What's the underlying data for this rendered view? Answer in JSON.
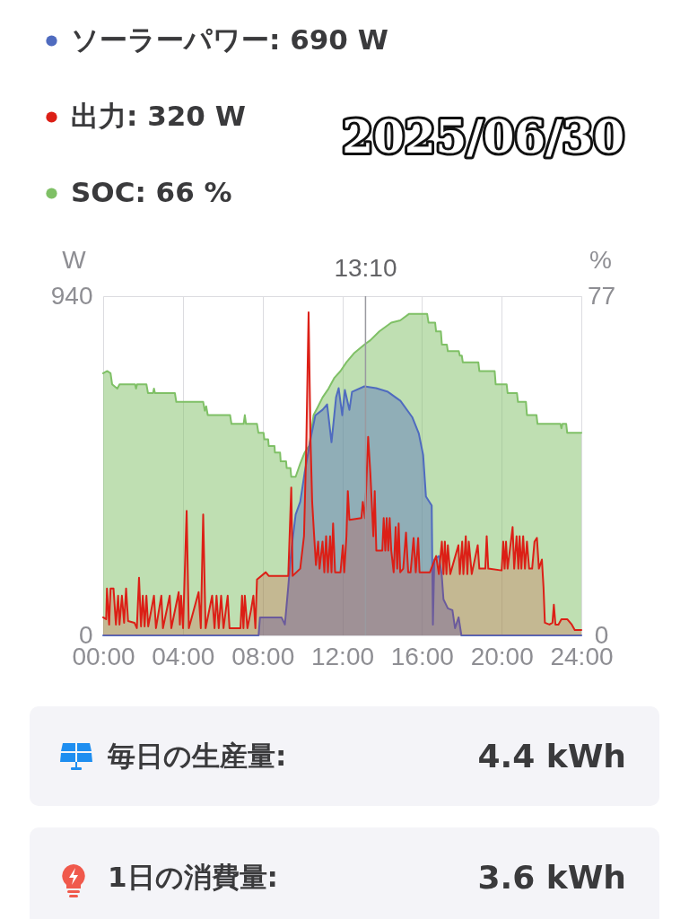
{
  "chart_data": {
    "type": "area",
    "title": "2025/06/30",
    "ylabel": "W",
    "y2label": "%",
    "xlim": [
      0,
      24
    ],
    "xticks": [
      {
        "value": 0,
        "label": "00:00"
      },
      {
        "value": 4,
        "label": "04:00"
      },
      {
        "value": 8,
        "label": "08:00"
      },
      {
        "value": 12,
        "label": "12:00"
      },
      {
        "value": 16,
        "label": "16:00"
      },
      {
        "value": 20,
        "label": "20:00"
      },
      {
        "value": 24,
        "label": "24:00"
      }
    ],
    "ylim": [
      0,
      940
    ],
    "yticks": [
      0,
      940
    ],
    "y2lim": [
      0,
      77
    ],
    "y2ticks": [
      0,
      77
    ],
    "grid": "x",
    "legend": "top left",
    "ref_lines": [
      {
        "axis": "x",
        "value": 13.167,
        "label": "13:10",
        "color": "#9a9aa0"
      }
    ],
    "series": [
      {
        "name": "ソーラーパワー: 690 W",
        "color": "#4f6bbf",
        "x": [
          0,
          7.8,
          7.87,
          8.5,
          8.95,
          9.12,
          9.29,
          9.44,
          9.66,
          9.89,
          10.11,
          10.43,
          10.65,
          11.01,
          11.24,
          11.46,
          11.69,
          11.82,
          12.0,
          12.13,
          12.36,
          12.49,
          13.11,
          13.7,
          14.29,
          14.92,
          15.51,
          15.84,
          16.06,
          16.2,
          16.49,
          16.55,
          16.62,
          16.85,
          16.99,
          17.08,
          17.3,
          17.53,
          17.66,
          17.84,
          17.98,
          24
        ],
        "values": [
          0,
          0,
          50,
          50,
          50,
          30,
          135,
          235,
          335,
          370,
          450,
          550,
          610,
          625,
          640,
          535,
          660,
          685,
          610,
          680,
          625,
          675,
          690,
          685,
          675,
          650,
          605,
          560,
          500,
          385,
          360,
          30,
          210,
          220,
          170,
          100,
          75,
          70,
          20,
          50,
          0,
          0
        ]
      },
      {
        "name": "出力: 320 W",
        "color": "#dc1f16",
        "x": [
          0,
          0.15,
          0.19,
          0.3,
          0.37,
          0.52,
          0.64,
          0.75,
          0.82,
          0.94,
          1.05,
          1.15,
          1.25,
          1.57,
          1.69,
          1.8,
          1.9,
          1.99,
          2.08,
          2.17,
          2.26,
          2.55,
          2.65,
          2.92,
          3.0,
          3.34,
          3.42,
          3.79,
          3.85,
          3.91,
          4.01,
          4.19,
          4.3,
          4.79,
          4.9,
          5.02,
          5.14,
          5.47,
          5.59,
          5.69,
          5.8,
          5.92,
          6.04,
          6.25,
          6.34,
          6.89,
          6.97,
          7.04,
          7.11,
          7.24,
          7.42,
          7.54,
          7.64,
          7.72,
          8.16,
          8.31,
          9.29,
          9.44,
          9.51,
          9.89,
          10.08,
          10.19,
          10.31,
          10.41,
          10.49,
          10.59,
          10.68,
          10.79,
          10.86,
          11.01,
          11.1,
          11.19,
          11.28,
          11.39,
          11.46,
          11.54,
          11.64,
          11.91,
          12.03,
          12.1,
          12.21,
          12.28,
          12.36,
          12.96,
          13.03,
          13.14,
          13.3,
          13.41,
          13.48,
          13.56,
          13.63,
          13.71,
          14.01,
          14.08,
          14.16,
          14.23,
          14.31,
          14.38,
          14.46,
          14.58,
          14.68,
          14.76,
          14.83,
          14.91,
          15.06,
          15.2,
          15.31,
          15.43,
          15.58,
          15.69,
          15.81,
          15.88,
          16.4,
          16.71,
          16.85,
          17.0,
          17.08,
          17.15,
          17.23,
          17.3,
          17.42,
          17.83,
          17.9,
          18.02,
          18.08,
          18.2,
          18.28,
          18.35,
          18.5,
          18.8,
          18.88,
          19.18,
          19.25,
          19.33,
          20.0,
          20.08,
          20.15,
          20.22,
          20.3,
          20.55,
          20.63,
          20.75,
          20.84,
          20.9,
          20.99,
          21.08,
          21.17,
          21.27,
          21.38,
          21.53,
          21.65,
          21.77,
          21.87,
          22.02,
          22.1,
          22.17,
          22.4,
          22.55,
          22.62,
          22.7,
          22.85,
          23.0,
          23.29,
          23.52,
          23.67,
          24
        ],
        "values": [
          50,
          45,
          130,
          30,
          130,
          130,
          30,
          110,
          30,
          110,
          35,
          130,
          40,
          35,
          20,
          160,
          25,
          110,
          25,
          110,
          25,
          110,
          20,
          110,
          20,
          110,
          20,
          120,
          30,
          110,
          20,
          345,
          20,
          120,
          20,
          335,
          20,
          110,
          20,
          110,
          20,
          110,
          20,
          110,
          20,
          20,
          110,
          20,
          110,
          20,
          70,
          110,
          20,
          155,
          175,
          165,
          165,
          410,
          165,
          185,
          275,
          515,
          895,
          535,
          370,
          275,
          195,
          260,
          185,
          260,
          175,
          275,
          175,
          275,
          175,
          310,
          175,
          175,
          250,
          175,
          275,
          400,
          320,
          325,
          370,
          325,
          550,
          450,
          370,
          275,
          400,
          235,
          235,
          325,
          235,
          325,
          235,
          325,
          235,
          175,
          300,
          185,
          310,
          175,
          185,
          285,
          175,
          175,
          270,
          175,
          270,
          175,
          175,
          220,
          170,
          260,
          170,
          260,
          170,
          250,
          170,
          250,
          170,
          260,
          170,
          275,
          170,
          260,
          170,
          250,
          185,
          185,
          275,
          185,
          180,
          260,
          185,
          260,
          185,
          300,
          185,
          275,
          185,
          275,
          185,
          275,
          185,
          260,
          185,
          185,
          260,
          270,
          185,
          210,
          135,
          35,
          30,
          35,
          85,
          30,
          30,
          45,
          45,
          30,
          15,
          15
        ]
      },
      {
        "name": "SOC: 66 %",
        "color": "#7fc066",
        "axis": "y2",
        "x": [
          0,
          0.2,
          0.37,
          0.45,
          0.71,
          0.82,
          1.6,
          1.65,
          1.7,
          2.17,
          2.25,
          2.5,
          2.55,
          2.6,
          3.6,
          3.67,
          5.02,
          5.1,
          5.17,
          5.25,
          6.37,
          6.44,
          7.05,
          7.11,
          7.17,
          7.72,
          7.79,
          8.05,
          8.09,
          8.28,
          8.31,
          8.6,
          8.62,
          8.88,
          8.91,
          9.18,
          9.21,
          9.4,
          9.44,
          9.66,
          9.89,
          10.11,
          10.34,
          10.56,
          10.79,
          11.01,
          11.31,
          11.61,
          11.91,
          12.21,
          12.58,
          13.11,
          13.41,
          13.86,
          14.46,
          14.91,
          15.36,
          16.26,
          16.33,
          16.66,
          16.71,
          16.95,
          17.0,
          17.25,
          17.3,
          17.85,
          17.9,
          18.0,
          18.05,
          18.83,
          18.88,
          19.65,
          19.7,
          20.25,
          20.3,
          20.77,
          20.82,
          21.22,
          21.27,
          21.75,
          21.8,
          22.95,
          23.0,
          23.05,
          23.24,
          23.29,
          24
        ],
        "values": [
          59.5,
          60,
          59.5,
          57,
          56,
          57,
          57,
          56,
          57,
          57,
          55,
          55,
          56,
          55,
          55,
          53,
          53,
          51,
          52,
          50,
          50,
          48,
          48,
          50,
          48,
          48,
          46,
          46,
          44.5,
          44.5,
          43,
          43,
          41.5,
          41.5,
          39.5,
          39.5,
          38,
          38,
          36,
          36,
          39,
          41.5,
          43,
          50,
          52,
          54,
          56,
          58.5,
          60,
          62,
          64,
          66,
          67,
          69,
          71,
          71.5,
          73,
          73,
          71,
          71,
          69,
          69,
          66,
          66,
          64.5,
          64.5,
          63.5,
          63.5,
          62,
          62,
          60,
          60,
          57,
          57,
          55,
          55,
          53,
          53,
          50,
          50,
          48,
          48,
          47,
          48,
          48,
          46,
          46
        ]
      }
    ],
    "annotations": [
      "毎日の生産量:",
      "4.4 kWh",
      "1日の消費量:",
      "3.6 kWh"
    ]
  }
}
